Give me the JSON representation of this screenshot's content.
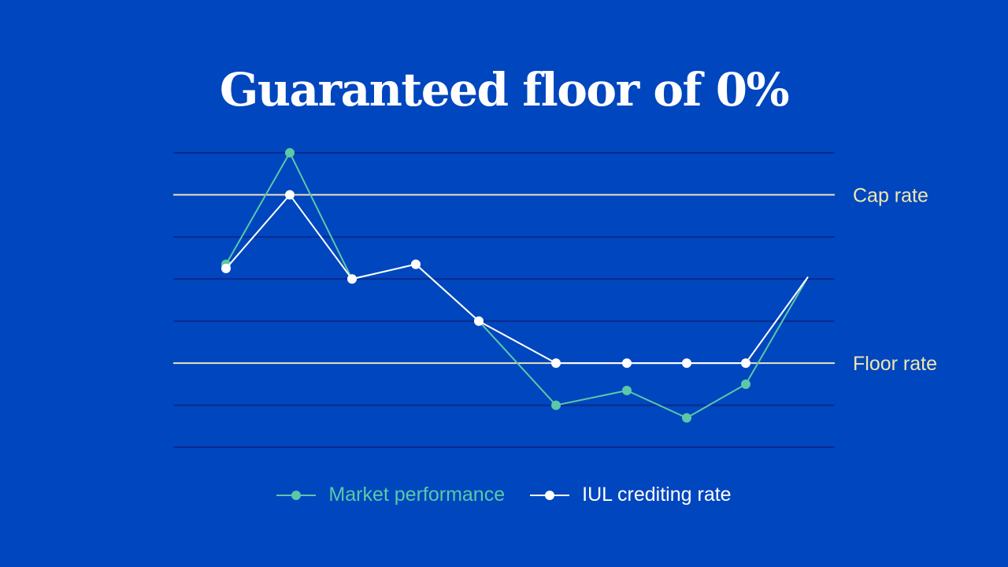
{
  "header": {
    "title": "Guaranteed floor of 0%"
  },
  "colors": {
    "background": "#0046BE",
    "gridline": "#0A2A8C",
    "reference_line": "#E9E4C2",
    "reference_label": "#F0E7AE",
    "market": "#5BC8A8",
    "iul": "#FFFFFF"
  },
  "chart_data": {
    "type": "line",
    "title": "Guaranteed floor of 0%",
    "xlabel": "",
    "ylabel": "",
    "x": [
      1,
      2,
      3,
      4,
      5,
      6,
      7,
      8,
      9,
      10
    ],
    "ylim": [
      -2,
      5
    ],
    "grid": true,
    "reference_lines": [
      {
        "label": "Cap rate",
        "value": 4
      },
      {
        "label": "Floor rate",
        "value": 0
      }
    ],
    "series": [
      {
        "name": "Market performance",
        "color": "#5BC8A8",
        "values": [
          2.35,
          5.0,
          2.0,
          2.35,
          1.0,
          -1.0,
          -0.65,
          -1.3,
          -0.5,
          2.05
        ],
        "markers": [
          true,
          true,
          true,
          true,
          true,
          true,
          true,
          true,
          true,
          false
        ]
      },
      {
        "name": "IUL crediting rate",
        "color": "#FFFFFF",
        "values": [
          2.25,
          4.0,
          2.0,
          2.35,
          1.0,
          0.0,
          0.0,
          0.0,
          0.0,
          2.05
        ],
        "markers": [
          true,
          true,
          true,
          true,
          true,
          true,
          true,
          true,
          true,
          false
        ]
      }
    ],
    "legend": {
      "position": "bottom"
    }
  }
}
